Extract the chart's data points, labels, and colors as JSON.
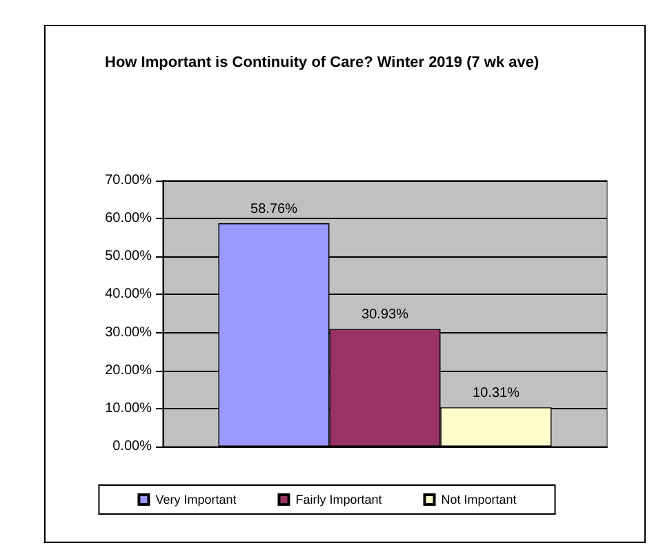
{
  "chart_data": {
    "type": "bar",
    "title": "How Important is Continuity of Care? Winter 2019 (7 wk ave)",
    "categories": [
      null
    ],
    "series": [
      {
        "name": "Very Important",
        "color": "#9999ff",
        "values": [
          58.76
        ],
        "value_labels": [
          "58.76%"
        ]
      },
      {
        "name": "Fairly Important",
        "color": "#993366",
        "values": [
          30.93
        ],
        "value_labels": [
          "30.93%"
        ]
      },
      {
        "name": "Not Important",
        "color": "#ffffcc",
        "values": [
          10.31
        ],
        "value_labels": [
          "10.31%"
        ]
      }
    ],
    "ylim": [
      0,
      70
    ],
    "yticks": [
      {
        "value": 0,
        "label": "0.00%"
      },
      {
        "value": 10,
        "label": "10.00%"
      },
      {
        "value": 20,
        "label": "20.00%"
      },
      {
        "value": 30,
        "label": "30.00%"
      },
      {
        "value": 40,
        "label": "40.00%"
      },
      {
        "value": 50,
        "label": "50.00%"
      },
      {
        "value": 60,
        "label": "60.00%"
      },
      {
        "value": 70,
        "label": "70.00%"
      }
    ],
    "grid": "y",
    "legend": "bottom"
  }
}
